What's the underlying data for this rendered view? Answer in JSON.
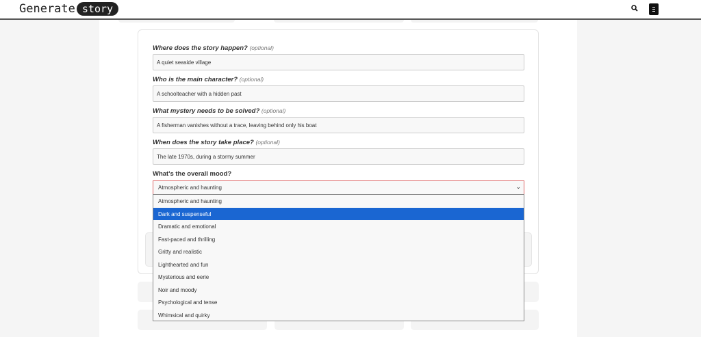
{
  "header": {
    "logo_text": "Generate",
    "logo_pill": "story",
    "search_icon": "search-icon",
    "menu_icon": "menu-icon"
  },
  "form": {
    "fields": [
      {
        "label": "Where does the story happen?",
        "optional": "(optional)",
        "value": "A quiet seaside village"
      },
      {
        "label": "Who is the main character?",
        "optional": "(optional)",
        "value": "A schoolteacher with a hidden past"
      },
      {
        "label": "What mystery needs to be solved?",
        "optional": "(optional)",
        "value": "A fisherman vanishes without a trace, leaving behind only his boat"
      },
      {
        "label": "When does the story take place?",
        "optional": "(optional)",
        "value": "The late 1970s, during a stormy summer"
      }
    ],
    "mood": {
      "label": "What's the overall mood?",
      "selected": "Atmospheric and haunting",
      "options": [
        "Atmospheric and haunting",
        "Dark and suspenseful",
        "Dramatic and emotional",
        "Fast-paced and thrilling",
        "Gritty and realistic",
        "Lighthearted and fun",
        "Mysterious and eerie",
        "Noir and moody",
        "Psychological and tense",
        "Whimsical and quirky"
      ],
      "highlighted": "Dark and suspenseful"
    }
  },
  "colors": {
    "highlight": "#1a66d2",
    "header_border": "#555555"
  }
}
